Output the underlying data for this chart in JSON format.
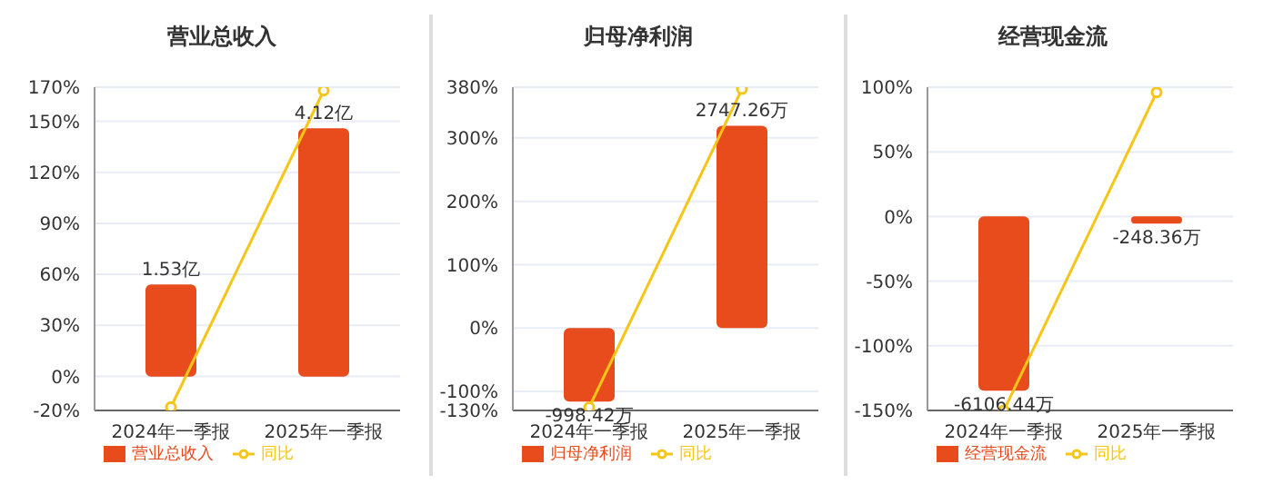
{
  "chart_data": [
    {
      "type": "bar",
      "title": "营业总收入",
      "categories": [
        "2024年一季报",
        "2025年一季报"
      ],
      "series": [
        {
          "name": "营业总收入",
          "axis": "y2",
          "color": "#e84b1c",
          "values": [
            1.53,
            4.12
          ],
          "value_labels": [
            "1.53亿",
            "4.12亿"
          ]
        },
        {
          "name": "同比",
          "type": "line",
          "color": "#f5c518",
          "values": [
            -18,
            168
          ],
          "marker": "circle"
        }
      ],
      "ylim": [
        -20,
        170
      ],
      "yticks": [
        {
          "value": -20,
          "label": "-20%"
        },
        {
          "value": 0,
          "label": "0%"
        },
        {
          "value": 30,
          "label": "30%"
        },
        {
          "value": 60,
          "label": "60%"
        },
        {
          "value": 90,
          "label": "90%"
        },
        {
          "value": 120,
          "label": "120%"
        },
        {
          "value": 150,
          "label": "150%"
        },
        {
          "value": 170,
          "label": "170%"
        }
      ],
      "y2lim": [
        -0.56,
        4.8
      ],
      "tick_labels": [
        "x",
        "y"
      ],
      "grid": "y",
      "legend": "bottom"
    },
    {
      "type": "bar",
      "title": "归母净利润",
      "categories": [
        "2024年一季报",
        "2025年一季报"
      ],
      "series": [
        {
          "name": "归母净利润",
          "axis": "y2",
          "color": "#e84b1c",
          "values": [
            -998.42,
            2747.26
          ],
          "value_labels": [
            "-998.42万",
            "2747.26万"
          ]
        },
        {
          "name": "同比",
          "type": "line",
          "color": "#f5c518",
          "values": [
            -125,
            377
          ],
          "marker": "circle"
        }
      ],
      "ylim": [
        -130,
        380
      ],
      "yticks": [
        {
          "value": -130,
          "label": "-130%"
        },
        {
          "value": -100,
          "label": "-100%"
        },
        {
          "value": 0,
          "label": "0%"
        },
        {
          "value": 100,
          "label": "100%"
        },
        {
          "value": 200,
          "label": "200%"
        },
        {
          "value": 300,
          "label": "300%"
        },
        {
          "value": 380,
          "label": "380%"
        }
      ],
      "y2lim": [
        -1120,
        3270
      ],
      "tick_labels": [
        "x",
        "y"
      ],
      "grid": "y",
      "legend": "bottom"
    },
    {
      "type": "bar",
      "title": "经营现金流",
      "categories": [
        "2024年一季报",
        "2025年一季报"
      ],
      "series": [
        {
          "name": "经营现金流",
          "axis": "y2",
          "color": "#e84b1c",
          "values": [
            -6106.44,
            -248.36
          ],
          "value_labels": [
            "-6106.44万",
            "-248.36万"
          ]
        },
        {
          "name": "同比",
          "type": "line",
          "color": "#f5c518",
          "values": [
            -150,
            96
          ],
          "marker": "circle"
        }
      ],
      "ylim": [
        -150,
        100
      ],
      "yticks": [
        {
          "value": -150,
          "label": "-150%"
        },
        {
          "value": -100,
          "label": "-100%"
        },
        {
          "value": -50,
          "label": "-50%"
        },
        {
          "value": 0,
          "label": "0%"
        },
        {
          "value": 50,
          "label": "50%"
        },
        {
          "value": 100,
          "label": "100%"
        }
      ],
      "y2lim": [
        -6800,
        4530
      ],
      "tick_labels": [
        "x",
        "y"
      ],
      "grid": "y",
      "legend": "bottom"
    }
  ]
}
